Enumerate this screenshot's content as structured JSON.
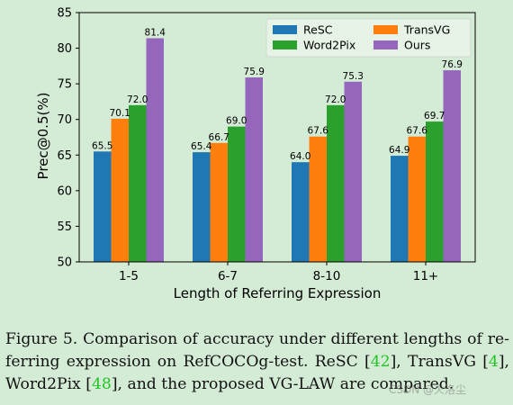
{
  "chart_data": {
    "type": "bar",
    "title": "",
    "xlabel": "Length of Referring Expression",
    "ylabel": "Prec@0.5(%)",
    "ylim": [
      50,
      85
    ],
    "yticks": [
      50,
      55,
      60,
      65,
      70,
      75,
      80,
      85
    ],
    "categories": [
      "1-5",
      "6-7",
      "8-10",
      "11+"
    ],
    "series": [
      {
        "name": "ReSC",
        "color": "#1f77b4",
        "values": [
          65.5,
          65.4,
          64.0,
          64.9
        ]
      },
      {
        "name": "TransVG",
        "color": "#ff7f0e",
        "values": [
          70.1,
          66.7,
          67.6,
          67.6
        ]
      },
      {
        "name": "Word2Pix",
        "color": "#2ca02c",
        "values": [
          72.0,
          69.0,
          72.0,
          69.7
        ]
      },
      {
        "name": "Ours",
        "color": "#9467bd",
        "values": [
          81.4,
          75.9,
          75.3,
          76.9
        ]
      }
    ],
    "legend": "top-right",
    "grid": false
  },
  "caption": {
    "label": "Figure 5.",
    "text_1": "Comparison of accuracy under different lengths of re-",
    "text_2": "ferring expression on RefCOCOg-test. ReSC [",
    "ref_resc": "42",
    "text_3": "], TransVG [",
    "ref_transvg": "4",
    "text_4": "],",
    "text_5": "Word2Pix [",
    "ref_word2pix": "48",
    "text_6": "], and the proposed VG-LAW are compared."
  },
  "watermark": "CSDN @火洛尘"
}
